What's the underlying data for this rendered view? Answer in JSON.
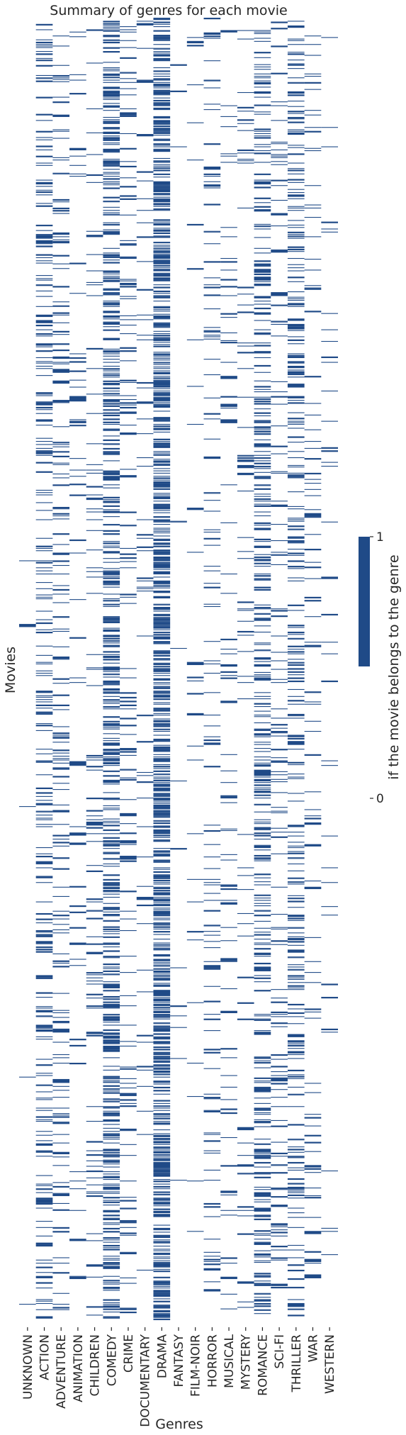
{
  "chart_data": {
    "type": "heatmap",
    "title": "Summary of genres for each movie",
    "xlabel": "Genres",
    "ylabel": "Movies",
    "categories": [
      "UNKNOWN",
      "ACTION",
      "ADVENTURE",
      "ANIMATION",
      "CHILDREN",
      "COMEDY",
      "CRIME",
      "DOCUMENTARY",
      "DRAMA",
      "FANTASY",
      "FILM-NOIR",
      "HORROR",
      "MUSICAL",
      "MYSTERY",
      "ROMANCE",
      "SCI-FI",
      "THRILLER",
      "WAR",
      "WESTERN"
    ],
    "value_range": [
      0,
      1
    ],
    "colorbar": {
      "label": "if the movie belongs to the genre",
      "ticks": [
        "0",
        "1"
      ]
    },
    "colors": {
      "belongs": "#1f4a87",
      "not_belongs": "#ffffff"
    },
    "row_labels_shown": false,
    "num_movies_estimate": 1680,
    "genre_presence_density": [
      0.002,
      0.15,
      0.09,
      0.03,
      0.05,
      0.31,
      0.07,
      0.03,
      0.44,
      0.01,
      0.015,
      0.06,
      0.04,
      0.04,
      0.19,
      0.07,
      0.18,
      0.05,
      0.02
    ]
  }
}
